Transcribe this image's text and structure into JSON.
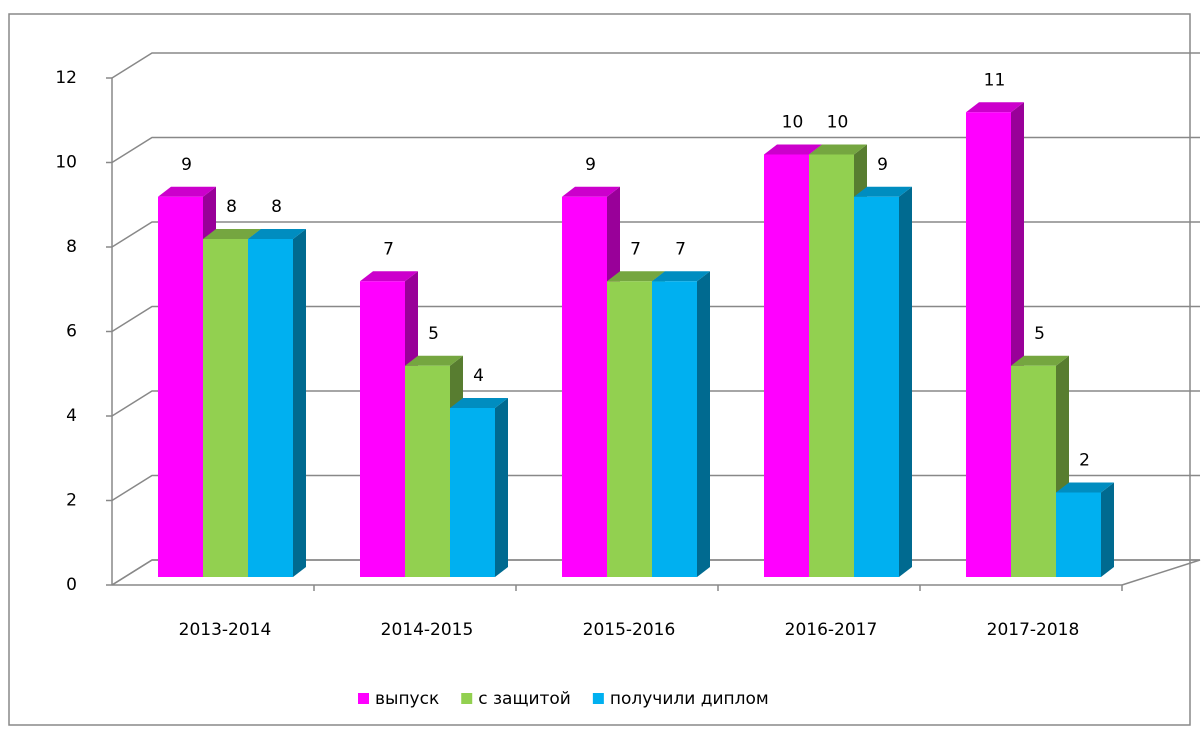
{
  "chart_data": {
    "type": "bar3d",
    "categories": [
      "2013-2014",
      "2014-2015",
      "2015-2016",
      "2016-2017",
      "2017-2018"
    ],
    "series": [
      {
        "name": "выпуск",
        "color": "#ff00ff",
        "values": [
          9,
          7,
          9,
          10,
          11
        ]
      },
      {
        "name": "с защитой",
        "color": "#92d050",
        "values": [
          8,
          5,
          7,
          10,
          5
        ]
      },
      {
        "name": "получили диплом",
        "color": "#00b0f0",
        "values": [
          8,
          4,
          7,
          9,
          2
        ]
      }
    ],
    "ylim": [
      0,
      12
    ],
    "yticks": [
      0,
      2,
      4,
      6,
      8,
      10,
      12
    ],
    "grid": true,
    "legend": "bottom"
  }
}
